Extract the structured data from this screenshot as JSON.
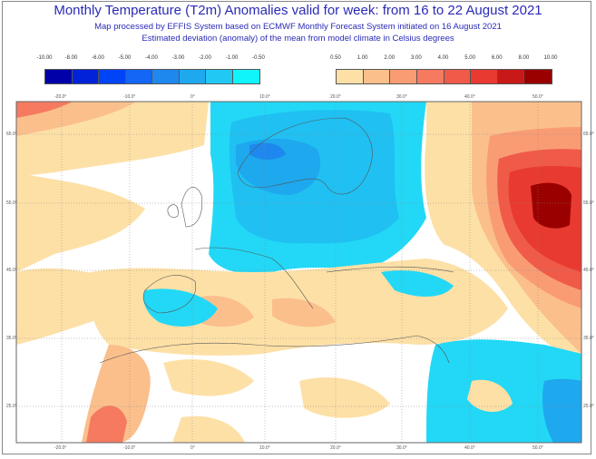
{
  "header": {
    "title": "Monthly Temperature (T2m) Anomalies valid for week: from 16 to 22 August 2021",
    "subtitle1": "Map processed by EFFIS System based on ECMWF Monthly Forecast System initiated on 16 August 2021",
    "subtitle2": "Estimated deviation (anomaly) of the mean from model climate in Celsius degrees"
  },
  "legend": {
    "cold": {
      "labels": [
        "-10.00",
        "-8.00",
        "-6.00",
        "-5.00",
        "-4.00",
        "-3.00",
        "-2.00",
        "-1.00",
        "-0.50"
      ],
      "colors": [
        "#0000a8",
        "#0022d8",
        "#0044f8",
        "#1466f4",
        "#1e88ee",
        "#1ea8ee",
        "#22c8f4",
        "#10f4fc"
      ]
    },
    "warm": {
      "labels": [
        "0.50",
        "1.00",
        "2.00",
        "3.00",
        "4.00",
        "5.00",
        "6.00",
        "8.00",
        "10.00"
      ],
      "colors": [
        "#fde0a6",
        "#fbbf8c",
        "#f99c74",
        "#f57a60",
        "#f05a48",
        "#e83a30",
        "#c81818",
        "#9a0000"
      ]
    }
  },
  "map": {
    "lon_labels": [
      "-20.0°",
      "-10.0°",
      "0°",
      "10.0°",
      "20.0°",
      "30.0°",
      "40.0°",
      "50.0°"
    ],
    "lat_labels": [
      "65.0°",
      "55.0°",
      "45.0°",
      "35.0°",
      "25.0°"
    ]
  }
}
